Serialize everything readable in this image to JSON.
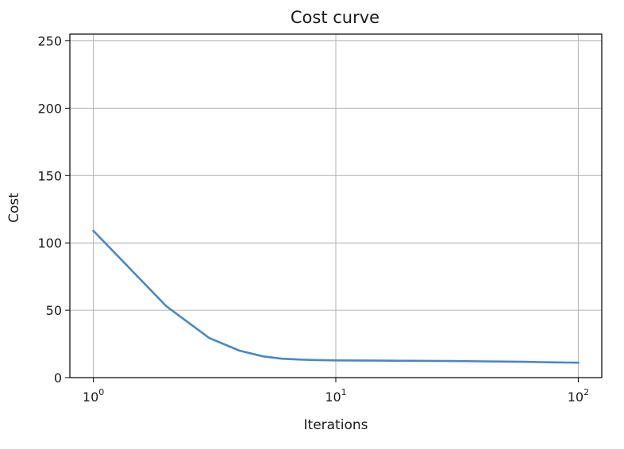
{
  "chart_data": {
    "type": "line",
    "title": "Cost curve",
    "xlabel": "Iterations",
    "ylabel": "Cost",
    "xscale": "log",
    "xlim": [
      0.8,
      125
    ],
    "ylim": [
      0,
      255
    ],
    "grid": true,
    "x_ticks": [
      {
        "base": "10",
        "exp": "0",
        "value": 1
      },
      {
        "base": "10",
        "exp": "1",
        "value": 10
      },
      {
        "base": "10",
        "exp": "2",
        "value": 100
      }
    ],
    "y_ticks": [
      0,
      50,
      100,
      150,
      200,
      250
    ],
    "series": [
      {
        "color": "#4a87c4",
        "x": [
          1,
          2,
          3,
          4,
          5,
          6,
          7,
          8,
          9,
          10,
          15,
          20,
          30,
          40,
          50,
          60,
          70,
          80,
          90,
          100
        ],
        "y": [
          109,
          53,
          29.5,
          20,
          15.8,
          14,
          13.4,
          13.1,
          12.9,
          12.8,
          12.6,
          12.5,
          12.3,
          12.1,
          11.9,
          11.7,
          11.5,
          11.3,
          11.2,
          11.1
        ]
      }
    ]
  }
}
